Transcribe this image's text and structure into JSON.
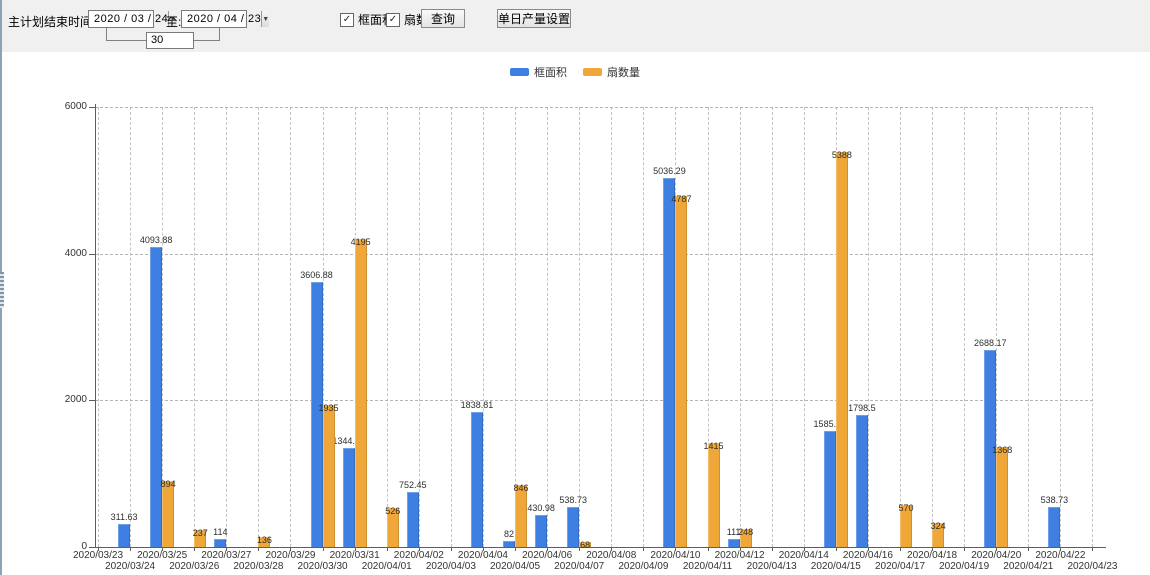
{
  "toolbar": {
    "plan_end_label": "主计划结束时间:",
    "date_from": "2020 / 03 / 24",
    "to_label": "至:",
    "date_to": "2020 / 04 / 23",
    "interval_value": "30",
    "checkbox_area_label": "框面积",
    "checkbox_fans_label": "扇数量",
    "query_button": "查询",
    "daily_output_button": "单日产量设置",
    "dropdown_icon": "▼",
    "check_glyph": "✓"
  },
  "chart_data": {
    "type": "bar",
    "title": "",
    "xlabel": "",
    "ylabel": "",
    "ylim": [
      0,
      6000
    ],
    "y_ticks": [
      0,
      2000,
      4000,
      6000
    ],
    "grid": "dashed",
    "legend_position": "top-center",
    "categories": [
      "2020/03/23",
      "2020/03/24",
      "2020/03/25",
      "2020/03/26",
      "2020/03/27",
      "2020/03/28",
      "2020/03/29",
      "2020/03/30",
      "2020/03/31",
      "2020/04/01",
      "2020/04/02",
      "2020/04/03",
      "2020/04/04",
      "2020/04/05",
      "2020/04/06",
      "2020/04/07",
      "2020/04/08",
      "2020/04/09",
      "2020/04/10",
      "2020/04/11",
      "2020/04/12",
      "2020/04/13",
      "2020/04/14",
      "2020/04/15",
      "2020/04/16",
      "2020/04/17",
      "2020/04/18",
      "2020/04/19",
      "2020/04/20",
      "2020/04/21",
      "2020/04/22",
      "2020/04/23"
    ],
    "series": [
      {
        "name": "框面积",
        "color": "#3e7fe1",
        "values": [
          null,
          311.63,
          4093.88,
          null,
          114,
          null,
          null,
          3606.88,
          1344.95,
          null,
          752.45,
          null,
          1838.81,
          82,
          430.98,
          538.73,
          null,
          null,
          5036.29,
          null,
          111,
          null,
          null,
          1585.96,
          1798.5,
          null,
          null,
          null,
          2688.17,
          null,
          538.73,
          null
        ]
      },
      {
        "name": "扇数量",
        "color": "#f0a73a",
        "values": [
          null,
          null,
          894,
          237,
          null,
          136,
          null,
          1935,
          4195,
          526,
          null,
          null,
          null,
          846,
          null,
          68,
          null,
          null,
          4787,
          1415,
          248,
          null,
          null,
          5388,
          null,
          570,
          324,
          null,
          1368,
          null,
          null,
          null
        ]
      }
    ]
  }
}
